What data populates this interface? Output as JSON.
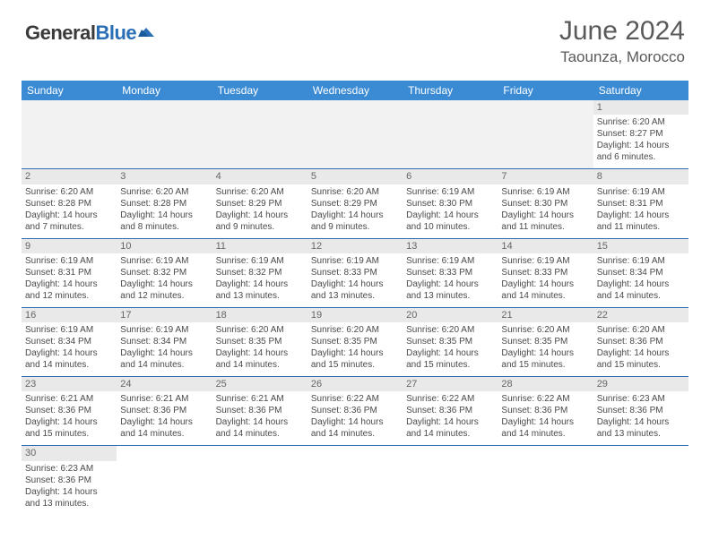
{
  "logo": {
    "text1": "General",
    "text2": "Blue"
  },
  "title": "June 2024",
  "location": "Taounza, Morocco",
  "colors": {
    "header_bg": "#3b8bd4",
    "header_text": "#ffffff",
    "rule": "#2a6fb5",
    "daybar": "#e9e9e9",
    "empty": "#f2f2f2"
  },
  "day_headers": [
    "Sunday",
    "Monday",
    "Tuesday",
    "Wednesday",
    "Thursday",
    "Friday",
    "Saturday"
  ],
  "weeks": [
    [
      null,
      null,
      null,
      null,
      null,
      null,
      {
        "n": "1",
        "sunrise": "6:20 AM",
        "sunset": "8:27 PM",
        "daylight": "14 hours and 6 minutes."
      }
    ],
    [
      {
        "n": "2",
        "sunrise": "6:20 AM",
        "sunset": "8:28 PM",
        "daylight": "14 hours and 7 minutes."
      },
      {
        "n": "3",
        "sunrise": "6:20 AM",
        "sunset": "8:28 PM",
        "daylight": "14 hours and 8 minutes."
      },
      {
        "n": "4",
        "sunrise": "6:20 AM",
        "sunset": "8:29 PM",
        "daylight": "14 hours and 9 minutes."
      },
      {
        "n": "5",
        "sunrise": "6:20 AM",
        "sunset": "8:29 PM",
        "daylight": "14 hours and 9 minutes."
      },
      {
        "n": "6",
        "sunrise": "6:19 AM",
        "sunset": "8:30 PM",
        "daylight": "14 hours and 10 minutes."
      },
      {
        "n": "7",
        "sunrise": "6:19 AM",
        "sunset": "8:30 PM",
        "daylight": "14 hours and 11 minutes."
      },
      {
        "n": "8",
        "sunrise": "6:19 AM",
        "sunset": "8:31 PM",
        "daylight": "14 hours and 11 minutes."
      }
    ],
    [
      {
        "n": "9",
        "sunrise": "6:19 AM",
        "sunset": "8:31 PM",
        "daylight": "14 hours and 12 minutes."
      },
      {
        "n": "10",
        "sunrise": "6:19 AM",
        "sunset": "8:32 PM",
        "daylight": "14 hours and 12 minutes."
      },
      {
        "n": "11",
        "sunrise": "6:19 AM",
        "sunset": "8:32 PM",
        "daylight": "14 hours and 13 minutes."
      },
      {
        "n": "12",
        "sunrise": "6:19 AM",
        "sunset": "8:33 PM",
        "daylight": "14 hours and 13 minutes."
      },
      {
        "n": "13",
        "sunrise": "6:19 AM",
        "sunset": "8:33 PM",
        "daylight": "14 hours and 13 minutes."
      },
      {
        "n": "14",
        "sunrise": "6:19 AM",
        "sunset": "8:33 PM",
        "daylight": "14 hours and 14 minutes."
      },
      {
        "n": "15",
        "sunrise": "6:19 AM",
        "sunset": "8:34 PM",
        "daylight": "14 hours and 14 minutes."
      }
    ],
    [
      {
        "n": "16",
        "sunrise": "6:19 AM",
        "sunset": "8:34 PM",
        "daylight": "14 hours and 14 minutes."
      },
      {
        "n": "17",
        "sunrise": "6:19 AM",
        "sunset": "8:34 PM",
        "daylight": "14 hours and 14 minutes."
      },
      {
        "n": "18",
        "sunrise": "6:20 AM",
        "sunset": "8:35 PM",
        "daylight": "14 hours and 14 minutes."
      },
      {
        "n": "19",
        "sunrise": "6:20 AM",
        "sunset": "8:35 PM",
        "daylight": "14 hours and 15 minutes."
      },
      {
        "n": "20",
        "sunrise": "6:20 AM",
        "sunset": "8:35 PM",
        "daylight": "14 hours and 15 minutes."
      },
      {
        "n": "21",
        "sunrise": "6:20 AM",
        "sunset": "8:35 PM",
        "daylight": "14 hours and 15 minutes."
      },
      {
        "n": "22",
        "sunrise": "6:20 AM",
        "sunset": "8:36 PM",
        "daylight": "14 hours and 15 minutes."
      }
    ],
    [
      {
        "n": "23",
        "sunrise": "6:21 AM",
        "sunset": "8:36 PM",
        "daylight": "14 hours and 15 minutes."
      },
      {
        "n": "24",
        "sunrise": "6:21 AM",
        "sunset": "8:36 PM",
        "daylight": "14 hours and 14 minutes."
      },
      {
        "n": "25",
        "sunrise": "6:21 AM",
        "sunset": "8:36 PM",
        "daylight": "14 hours and 14 minutes."
      },
      {
        "n": "26",
        "sunrise": "6:22 AM",
        "sunset": "8:36 PM",
        "daylight": "14 hours and 14 minutes."
      },
      {
        "n": "27",
        "sunrise": "6:22 AM",
        "sunset": "8:36 PM",
        "daylight": "14 hours and 14 minutes."
      },
      {
        "n": "28",
        "sunrise": "6:22 AM",
        "sunset": "8:36 PM",
        "daylight": "14 hours and 14 minutes."
      },
      {
        "n": "29",
        "sunrise": "6:23 AM",
        "sunset": "8:36 PM",
        "daylight": "14 hours and 13 minutes."
      }
    ],
    [
      {
        "n": "30",
        "sunrise": "6:23 AM",
        "sunset": "8:36 PM",
        "daylight": "14 hours and 13 minutes."
      },
      null,
      null,
      null,
      null,
      null,
      null
    ]
  ],
  "labels": {
    "sunrise": "Sunrise: ",
    "sunset": "Sunset: ",
    "daylight": "Daylight: "
  }
}
